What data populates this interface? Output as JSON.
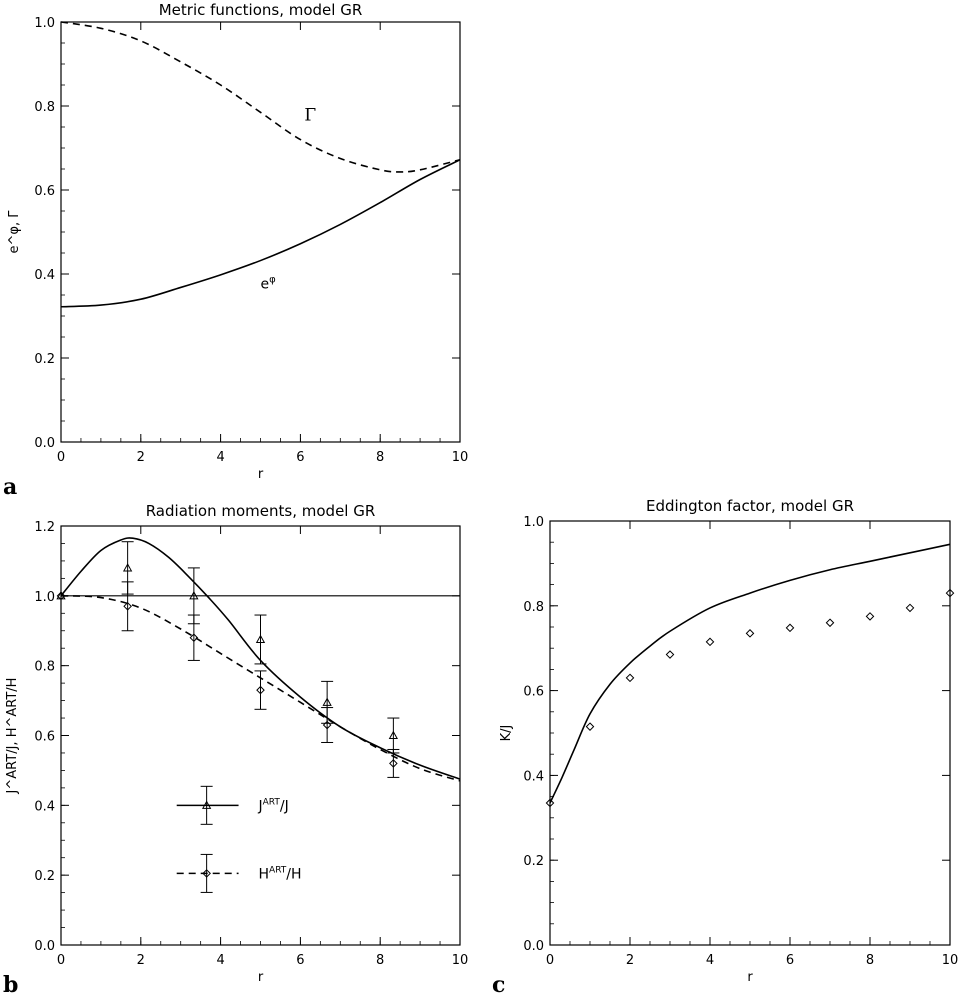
{
  "chart_data": [
    {
      "panel_label": "a",
      "type": "line",
      "title": "Metric functions, model GR",
      "xlabel": "r",
      "ylabel": "e^φ, Γ",
      "xlim": [
        0,
        10
      ],
      "ylim": [
        0,
        1
      ],
      "xticks": [
        "0",
        "2",
        "4",
        "6",
        "8",
        "10"
      ],
      "yticks": [
        "0.0",
        "0.2",
        "0.4",
        "0.6",
        "0.8",
        "1.0"
      ],
      "grid": false,
      "series": [
        {
          "name": "Γ",
          "style": "dashed",
          "x": [
            0,
            1,
            2,
            3,
            4,
            5,
            6,
            7,
            8,
            8.5,
            9,
            10
          ],
          "y": [
            1.0,
            0.985,
            0.955,
            0.905,
            0.85,
            0.785,
            0.72,
            0.675,
            0.648,
            0.643,
            0.648,
            0.672
          ]
        },
        {
          "name": "e^φ",
          "style": "solid",
          "x": [
            0,
            1,
            2,
            3,
            4,
            5,
            6,
            7,
            8,
            9,
            10
          ],
          "y": [
            0.322,
            0.326,
            0.34,
            0.368,
            0.398,
            0.432,
            0.472,
            0.518,
            0.57,
            0.625,
            0.672
          ]
        }
      ]
    },
    {
      "panel_label": "b",
      "type": "line",
      "title": "Radiation moments, model GR",
      "xlabel": "r",
      "ylabel": "J^ART/J, H^ART/H",
      "xlim": [
        0,
        10
      ],
      "ylim": [
        0,
        1.2
      ],
      "xticks": [
        "0",
        "2",
        "4",
        "6",
        "8",
        "10"
      ],
      "yticks": [
        "0.0",
        "0.2",
        "0.4",
        "0.6",
        "0.8",
        "1.0",
        "1.2"
      ],
      "grid": false,
      "reference_line_y": 1.0,
      "legend": {
        "placement": "lower-left",
        "entries": [
          {
            "series": "J",
            "label_main": "J",
            "label_sup": "ART",
            "label_tail": "/J"
          },
          {
            "series": "H",
            "label_main": "H",
            "label_sup": "ART",
            "label_tail": "/H"
          }
        ]
      },
      "series": [
        {
          "name": "J^ART/J",
          "style": "solid",
          "x": [
            0,
            0.5,
            1,
            1.5,
            1.8,
            2.2,
            2.7,
            3.2,
            3.7,
            4.2,
            5,
            6,
            7,
            8,
            9,
            10
          ],
          "y": [
            1.0,
            1.07,
            1.13,
            1.16,
            1.165,
            1.15,
            1.11,
            1.055,
            0.995,
            0.93,
            0.815,
            0.71,
            0.625,
            0.565,
            0.515,
            0.475
          ],
          "points": {
            "marker": "triangle",
            "x": [
              0,
              1.67,
              3.33,
              5.0,
              6.67,
              8.33
            ],
            "y": [
              1.0,
              1.08,
              1.0,
              0.875,
              0.695,
              0.6
            ],
            "err": [
              0,
              0.075,
              0.08,
              0.07,
              0.06,
              0.05
            ]
          }
        },
        {
          "name": "H^ART/H",
          "style": "dashed",
          "x": [
            0,
            1,
            2,
            3,
            4,
            5,
            6,
            7,
            8,
            9,
            10
          ],
          "y": [
            1.0,
            0.995,
            0.965,
            0.905,
            0.835,
            0.765,
            0.695,
            0.625,
            0.56,
            0.505,
            0.47
          ],
          "points": {
            "marker": "diamond",
            "x": [
              0,
              1.67,
              3.33,
              5.0,
              6.67,
              8.33
            ],
            "y": [
              1.0,
              0.97,
              0.88,
              0.73,
              0.63,
              0.52
            ],
            "err": [
              0,
              0.07,
              0.065,
              0.055,
              0.05,
              0.04
            ]
          }
        }
      ]
    },
    {
      "panel_label": "c",
      "type": "line",
      "title": "Eddington factor, model GR",
      "xlabel": "r",
      "ylabel": "K/J",
      "xlim": [
        0,
        10
      ],
      "ylim": [
        0,
        1
      ],
      "xticks": [
        "0",
        "2",
        "4",
        "6",
        "8",
        "10"
      ],
      "yticks": [
        "0.0",
        "0.2",
        "0.4",
        "0.6",
        "0.8",
        "1.0"
      ],
      "grid": false,
      "series": [
        {
          "name": "K/J",
          "style": "solid",
          "x": [
            0,
            0.3,
            0.6,
            1,
            1.5,
            2,
            2.5,
            3,
            4,
            5,
            6,
            7,
            8,
            9,
            10
          ],
          "y": [
            0.335,
            0.395,
            0.46,
            0.545,
            0.615,
            0.665,
            0.705,
            0.74,
            0.795,
            0.83,
            0.86,
            0.885,
            0.905,
            0.925,
            0.945
          ]
        },
        {
          "name": "points",
          "style": "markers",
          "marker": "diamond",
          "x": [
            0,
            1,
            2,
            3,
            4,
            5,
            6,
            7,
            8,
            9,
            10
          ],
          "y": [
            0.335,
            0.515,
            0.63,
            0.685,
            0.715,
            0.735,
            0.748,
            0.76,
            0.775,
            0.795,
            0.83
          ]
        }
      ]
    }
  ]
}
